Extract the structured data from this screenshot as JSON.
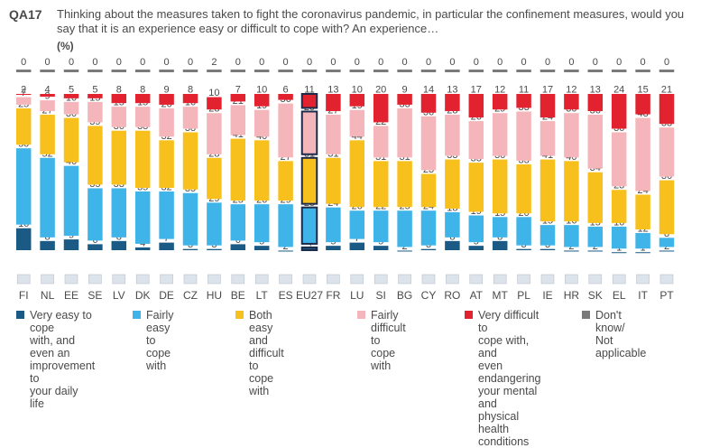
{
  "header": {
    "qid": "QA17",
    "question": "Thinking about the measures taken to fight the coronavirus pandemic, in particular the confinement measures, would you say that it is an experience easy or difficult to cope with? An experience…",
    "unit": "(%)"
  },
  "colors": {
    "very_easy": "#1b5a84",
    "fairly_easy": "#3fb4e8",
    "both": "#f8c01c",
    "fairly_difficult": "#f4b6bb",
    "very_difficult": "#e2222f",
    "dont_know": "#7a7a7a",
    "highlight_outline": "#1e2a4a"
  },
  "legend": [
    {
      "key": "very_easy",
      "lines": [
        "Very easy to cope",
        "with, and even an",
        "improvement to",
        "your daily life"
      ]
    },
    {
      "key": "fairly_easy",
      "lines": [
        "Fairly easy to",
        "cope with"
      ]
    },
    {
      "key": "both",
      "lines": [
        "Both easy and",
        "difficult to cope",
        "with"
      ]
    },
    {
      "key": "fairly_difficult",
      "lines": [
        "Fairly difficult",
        "to cope with"
      ]
    },
    {
      "key": "very_difficult",
      "lines": [
        "Very difficult to",
        "cope with, and",
        "even endangering",
        "your mental and",
        "physical health",
        "conditions"
      ]
    },
    {
      "key": "dont_know",
      "lines": [
        "Don't know/",
        "Not applicable"
      ]
    }
  ],
  "chart_data": {
    "type": "bar",
    "stacked": true,
    "categories": [
      "FI",
      "NL",
      "EE",
      "SE",
      "LV",
      "DK",
      "DE",
      "CZ",
      "HU",
      "BE",
      "LT",
      "ES",
      "EU27",
      "FR",
      "LU",
      "SI",
      "BG",
      "CY",
      "RO",
      "AT",
      "MT",
      "PL",
      "IE",
      "HR",
      "SK",
      "EL",
      "IT",
      "PT"
    ],
    "highlight": "EU27",
    "series": [
      {
        "key": "very_easy",
        "name": "Very easy to cope with, and even an improvement to your daily life",
        "values": [
          16,
          8,
          9,
          6,
          8,
          4,
          7,
          3,
          3,
          6,
          5,
          2,
          4,
          5,
          7,
          5,
          2,
          3,
          8,
          5,
          8,
          3,
          3,
          2,
          2,
          1,
          1,
          2
        ]
      },
      {
        "key": "fairly_easy",
        "name": "Fairly easy to cope with",
        "values": [
          50,
          52,
          46,
          35,
          33,
          35,
          32,
          35,
          29,
          25,
          26,
          29,
          25,
          24,
          20,
          22,
          25,
          24,
          18,
          19,
          15,
          20,
          15,
          16,
          15,
          16,
          12,
          8
        ]
      },
      {
        "key": "both",
        "name": "Both easy and difficult to cope with",
        "values": [
          25,
          27,
          30,
          39,
          36,
          38,
          32,
          38,
          28,
          41,
          40,
          27,
          31,
          31,
          44,
          31,
          31,
          23,
          33,
          33,
          36,
          33,
          41,
          40,
          34,
          23,
          24,
          36
        ]
      },
      {
        "key": "fairly_difficult",
        "name": "Fairly difficult to cope with",
        "values": [
          7,
          9,
          10,
          15,
          15,
          15,
          20,
          16,
          28,
          21,
          19,
          36,
          29,
          27,
          19,
          22,
          33,
          36,
          28,
          26,
          29,
          33,
          24,
          30,
          36,
          36,
          48,
          33
        ]
      },
      {
        "key": "very_difficult",
        "name": "Very difficult to cope with, and even endangering your mental and physical health conditions",
        "values": [
          2,
          4,
          5,
          5,
          8,
          8,
          9,
          8,
          10,
          7,
          10,
          6,
          11,
          13,
          10,
          20,
          9,
          14,
          13,
          17,
          12,
          11,
          17,
          12,
          13,
          24,
          15,
          21
        ]
      },
      {
        "key": "dont_know",
        "name": "Don't know/ Not applicable",
        "values": [
          0,
          0,
          0,
          0,
          0,
          0,
          0,
          0,
          2,
          0,
          0,
          0,
          0,
          0,
          0,
          0,
          0,
          0,
          0,
          0,
          0,
          0,
          0,
          0,
          0,
          0,
          0,
          0
        ]
      }
    ]
  }
}
